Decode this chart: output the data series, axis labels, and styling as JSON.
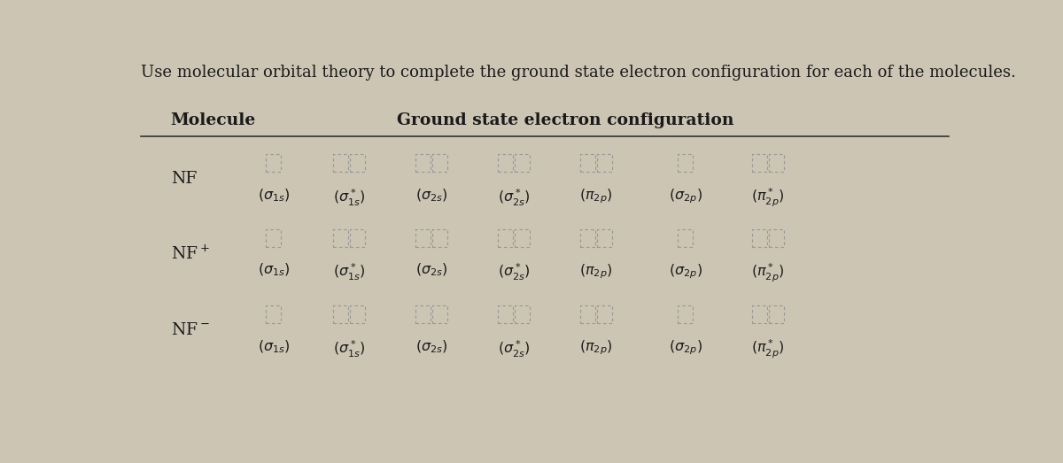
{
  "title": "Use molecular orbital theory to complete the ground state electron configuration for each of the molecules.",
  "background_color": "#cdc5b4",
  "header_molecule": "Molecule",
  "header_config": "Ground state electron configuration",
  "molecule_labels": [
    "NF",
    "NF$^+$",
    "NF$^-$"
  ],
  "orbital_latex": [
    "$({\\sigma}_{1s})$",
    "$({\\sigma}_{1s}^*)$",
    "$({\\sigma}_{2s})$",
    "$({\\sigma}_{2s}^*)$",
    "$({\\pi}_{2p})$",
    "$({\\sigma}_{2p})$",
    "$({\\pi}_{2p}^*)$"
  ],
  "text_color": "#1a1a1a",
  "box_edge_color": "#999999",
  "header_line_color": "#333333",
  "font_size_title": 13.0,
  "font_size_header": 13.5,
  "font_size_mol": 13.5,
  "font_size_orbital": 11.5,
  "box_types": [
    1,
    2,
    2,
    2,
    2,
    1,
    2
  ]
}
